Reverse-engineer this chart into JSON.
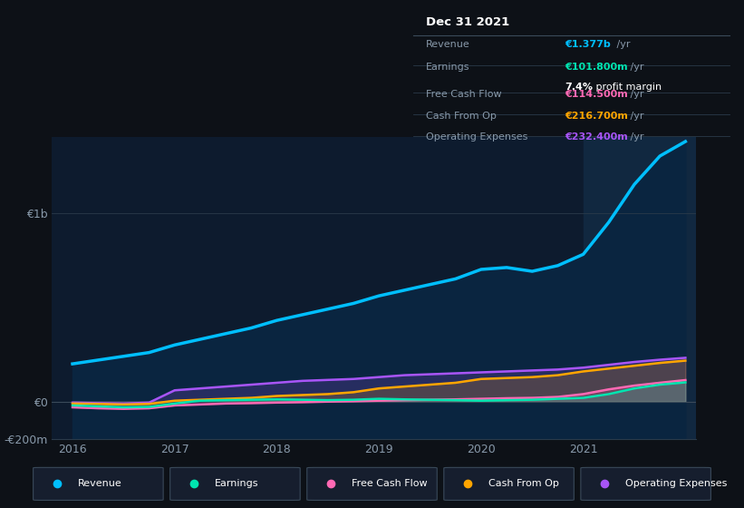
{
  "background_color": "#0d1117",
  "plot_bg_color": "#0d1b2e",
  "highlight_bg_color": "#112840",
  "grid_color": "#2a3a4a",
  "title_date": "Dec 31 2021",
  "info_box": {
    "Revenue": {
      "label": "Revenue",
      "value": "€1.377b",
      "color": "#00bfff",
      "suffix": "/yr"
    },
    "Earnings": {
      "label": "Earnings",
      "value": "€101.800m",
      "color": "#00e5b0",
      "suffix": "/yr"
    },
    "Free Cash Flow": {
      "label": "Free Cash Flow",
      "value": "€114.500m",
      "color": "#ff69b4",
      "suffix": "/yr"
    },
    "Cash From Op": {
      "label": "Cash From Op",
      "value": "€216.700m",
      "color": "#ffa500",
      "suffix": "/yr"
    },
    "Operating Expenses": {
      "label": "Operating Expenses",
      "value": "€232.400m",
      "color": "#a855f7",
      "suffix": "/yr"
    }
  },
  "profit_margin_val": "7.4%",
  "profit_margin_label": "profit margin",
  "x_years": [
    2016.0,
    2016.25,
    2016.5,
    2016.75,
    2017.0,
    2017.25,
    2017.5,
    2017.75,
    2018.0,
    2018.25,
    2018.5,
    2018.75,
    2019.0,
    2019.25,
    2019.5,
    2019.75,
    2020.0,
    2020.25,
    2020.5,
    2020.75,
    2021.0,
    2021.25,
    2021.5,
    2021.75,
    2022.0
  ],
  "revenue": [
    200,
    220,
    240,
    260,
    300,
    330,
    360,
    390,
    430,
    460,
    490,
    520,
    560,
    590,
    620,
    650,
    700,
    710,
    690,
    720,
    780,
    950,
    1150,
    1300,
    1377
  ],
  "earnings": [
    -20,
    -25,
    -30,
    -28,
    -10,
    5,
    8,
    10,
    12,
    10,
    8,
    10,
    15,
    12,
    10,
    8,
    5,
    8,
    10,
    15,
    20,
    40,
    70,
    90,
    102
  ],
  "free_cash_flow": [
    -30,
    -35,
    -38,
    -35,
    -20,
    -15,
    -10,
    -8,
    -5,
    -3,
    0,
    2,
    5,
    8,
    10,
    12,
    15,
    18,
    20,
    25,
    40,
    65,
    85,
    100,
    114
  ],
  "cash_from_op": [
    -10,
    -12,
    -15,
    -12,
    5,
    10,
    15,
    20,
    30,
    35,
    40,
    50,
    70,
    80,
    90,
    100,
    120,
    125,
    130,
    140,
    160,
    175,
    190,
    205,
    217
  ],
  "operating_expenses": [
    -5,
    -8,
    -10,
    -5,
    60,
    70,
    80,
    90,
    100,
    110,
    115,
    120,
    130,
    140,
    145,
    150,
    155,
    160,
    165,
    170,
    180,
    195,
    210,
    222,
    232
  ],
  "revenue_color": "#00bfff",
  "earnings_color": "#00e5b0",
  "free_cash_flow_color": "#ff69b4",
  "cash_from_op_color": "#ffa500",
  "operating_expenses_color": "#a855f7",
  "ylim_min": -200,
  "ylim_max": 1400,
  "xlim_min": 2015.8,
  "xlim_max": 2022.1,
  "highlight_start": 2021.0,
  "yticks": [
    -200,
    0,
    1000
  ],
  "ytick_labels": [
    "-€200m",
    "€0",
    "€1b"
  ],
  "xticks": [
    2016,
    2017,
    2018,
    2019,
    2020,
    2021
  ],
  "legend_items": [
    {
      "label": "Revenue",
      "color": "#00bfff"
    },
    {
      "label": "Earnings",
      "color": "#00e5b0"
    },
    {
      "label": "Free Cash Flow",
      "color": "#ff69b4"
    },
    {
      "label": "Cash From Op",
      "color": "#ffa500"
    },
    {
      "label": "Operating Expenses",
      "color": "#a855f7"
    }
  ]
}
